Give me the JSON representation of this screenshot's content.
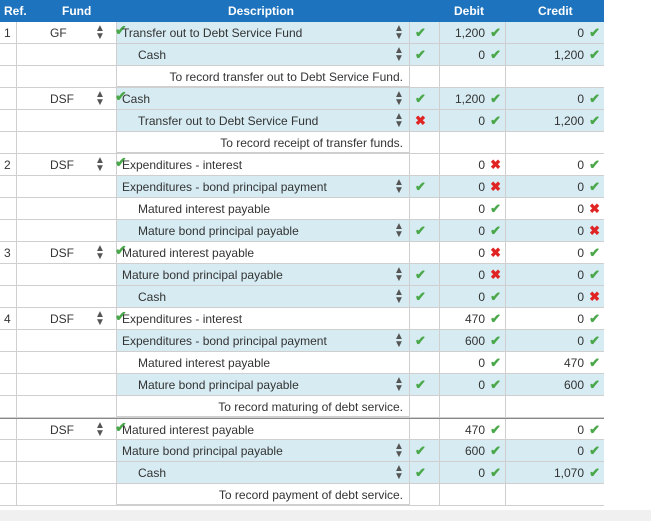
{
  "headers": {
    "ref": "Ref.",
    "fund": "Fund",
    "description": "Description",
    "debit": "Debit",
    "credit": "Credit"
  },
  "rows": [
    {
      "ref": "1",
      "fund": "GF",
      "desc": "Transfer out to Debt Service Fund",
      "indent": 0,
      "drop": true,
      "blue": true,
      "chk": "check",
      "debit": "1,200",
      "dm": "check",
      "credit": "0",
      "cm": "check",
      "lead": true
    },
    {
      "desc": "Cash",
      "indent": 1,
      "drop": true,
      "blue": true,
      "chk": "check",
      "debit": "0",
      "dm": "check",
      "credit": "1,200",
      "cm": "check"
    },
    {
      "memo": "To record transfer out to Debt Service Fund."
    },
    {
      "fund": "DSF",
      "desc": "Cash",
      "indent": 0,
      "drop": true,
      "blue": true,
      "chk": "check",
      "debit": "1,200",
      "dm": "check",
      "credit": "0",
      "cm": "check",
      "lead": true
    },
    {
      "desc": "Transfer out to Debt Service Fund",
      "indent": 1,
      "drop": true,
      "blue": true,
      "chk": "cross",
      "debit": "0",
      "dm": "check",
      "credit": "1,200",
      "cm": "check"
    },
    {
      "memo": "To record receipt of transfer funds."
    },
    {
      "ref": "2",
      "fund": "DSF",
      "desc": "Expenditures - interest",
      "indent": 0,
      "drop": false,
      "blue": false,
      "debit": "0",
      "dm": "cross",
      "credit": "0",
      "cm": "check",
      "lead": true
    },
    {
      "desc": "Expenditures - bond principal payment",
      "indent": 0,
      "drop": true,
      "blue": true,
      "chk": "check",
      "debit": "0",
      "dm": "cross",
      "credit": "0",
      "cm": "check"
    },
    {
      "desc": "Matured interest payable",
      "indent": 1,
      "drop": false,
      "blue": false,
      "debit": "0",
      "dm": "check",
      "credit": "0",
      "cm": "cross"
    },
    {
      "desc": "Mature bond principal payable",
      "indent": 1,
      "drop": true,
      "blue": true,
      "chk": "check",
      "debit": "0",
      "dm": "check",
      "credit": "0",
      "cm": "cross"
    },
    {
      "ref": "3",
      "fund": "DSF",
      "desc": "Matured interest payable",
      "indent": 0,
      "drop": false,
      "blue": false,
      "debit": "0",
      "dm": "cross",
      "credit": "0",
      "cm": "check",
      "lead": true
    },
    {
      "desc": "Mature bond principal payable",
      "indent": 0,
      "drop": true,
      "blue": true,
      "chk": "check",
      "debit": "0",
      "dm": "cross",
      "credit": "0",
      "cm": "check"
    },
    {
      "desc": "Cash",
      "indent": 1,
      "drop": true,
      "blue": true,
      "chk": "check",
      "debit": "0",
      "dm": "check",
      "credit": "0",
      "cm": "cross"
    },
    {
      "ref": "4",
      "fund": "DSF",
      "desc": "Expenditures - interest",
      "indent": 0,
      "drop": false,
      "blue": false,
      "debit": "470",
      "dm": "check",
      "credit": "0",
      "cm": "check",
      "lead": true
    },
    {
      "desc": "Expenditures - bond principal payment",
      "indent": 0,
      "drop": true,
      "blue": true,
      "chk": "check",
      "debit": "600",
      "dm": "check",
      "credit": "0",
      "cm": "check"
    },
    {
      "desc": "Matured interest payable",
      "indent": 1,
      "drop": false,
      "blue": false,
      "debit": "0",
      "dm": "check",
      "credit": "470",
      "cm": "check"
    },
    {
      "desc": "Mature bond principal payable",
      "indent": 1,
      "drop": true,
      "blue": true,
      "chk": "check",
      "debit": "0",
      "dm": "check",
      "credit": "600",
      "cm": "check"
    },
    {
      "memo": "To record maturing of debt service."
    },
    {
      "fund": "DSF",
      "desc": "Matured interest payable",
      "indent": 0,
      "drop": false,
      "blue": false,
      "debit": "470",
      "dm": "check",
      "credit": "0",
      "cm": "check",
      "lead": true,
      "topline": true
    },
    {
      "desc": "Mature bond principal payable",
      "indent": 0,
      "drop": true,
      "blue": true,
      "chk": "check",
      "debit": "600",
      "dm": "check",
      "credit": "0",
      "cm": "check"
    },
    {
      "desc": "Cash",
      "indent": 1,
      "drop": true,
      "blue": true,
      "chk": "check",
      "debit": "0",
      "dm": "check",
      "credit": "1,070",
      "cm": "check"
    },
    {
      "memo": "To record payment of debt service."
    }
  ],
  "icons": {
    "sort": "sort-arrows-icon",
    "check": "checkmark-icon",
    "cross": "cross-icon"
  }
}
